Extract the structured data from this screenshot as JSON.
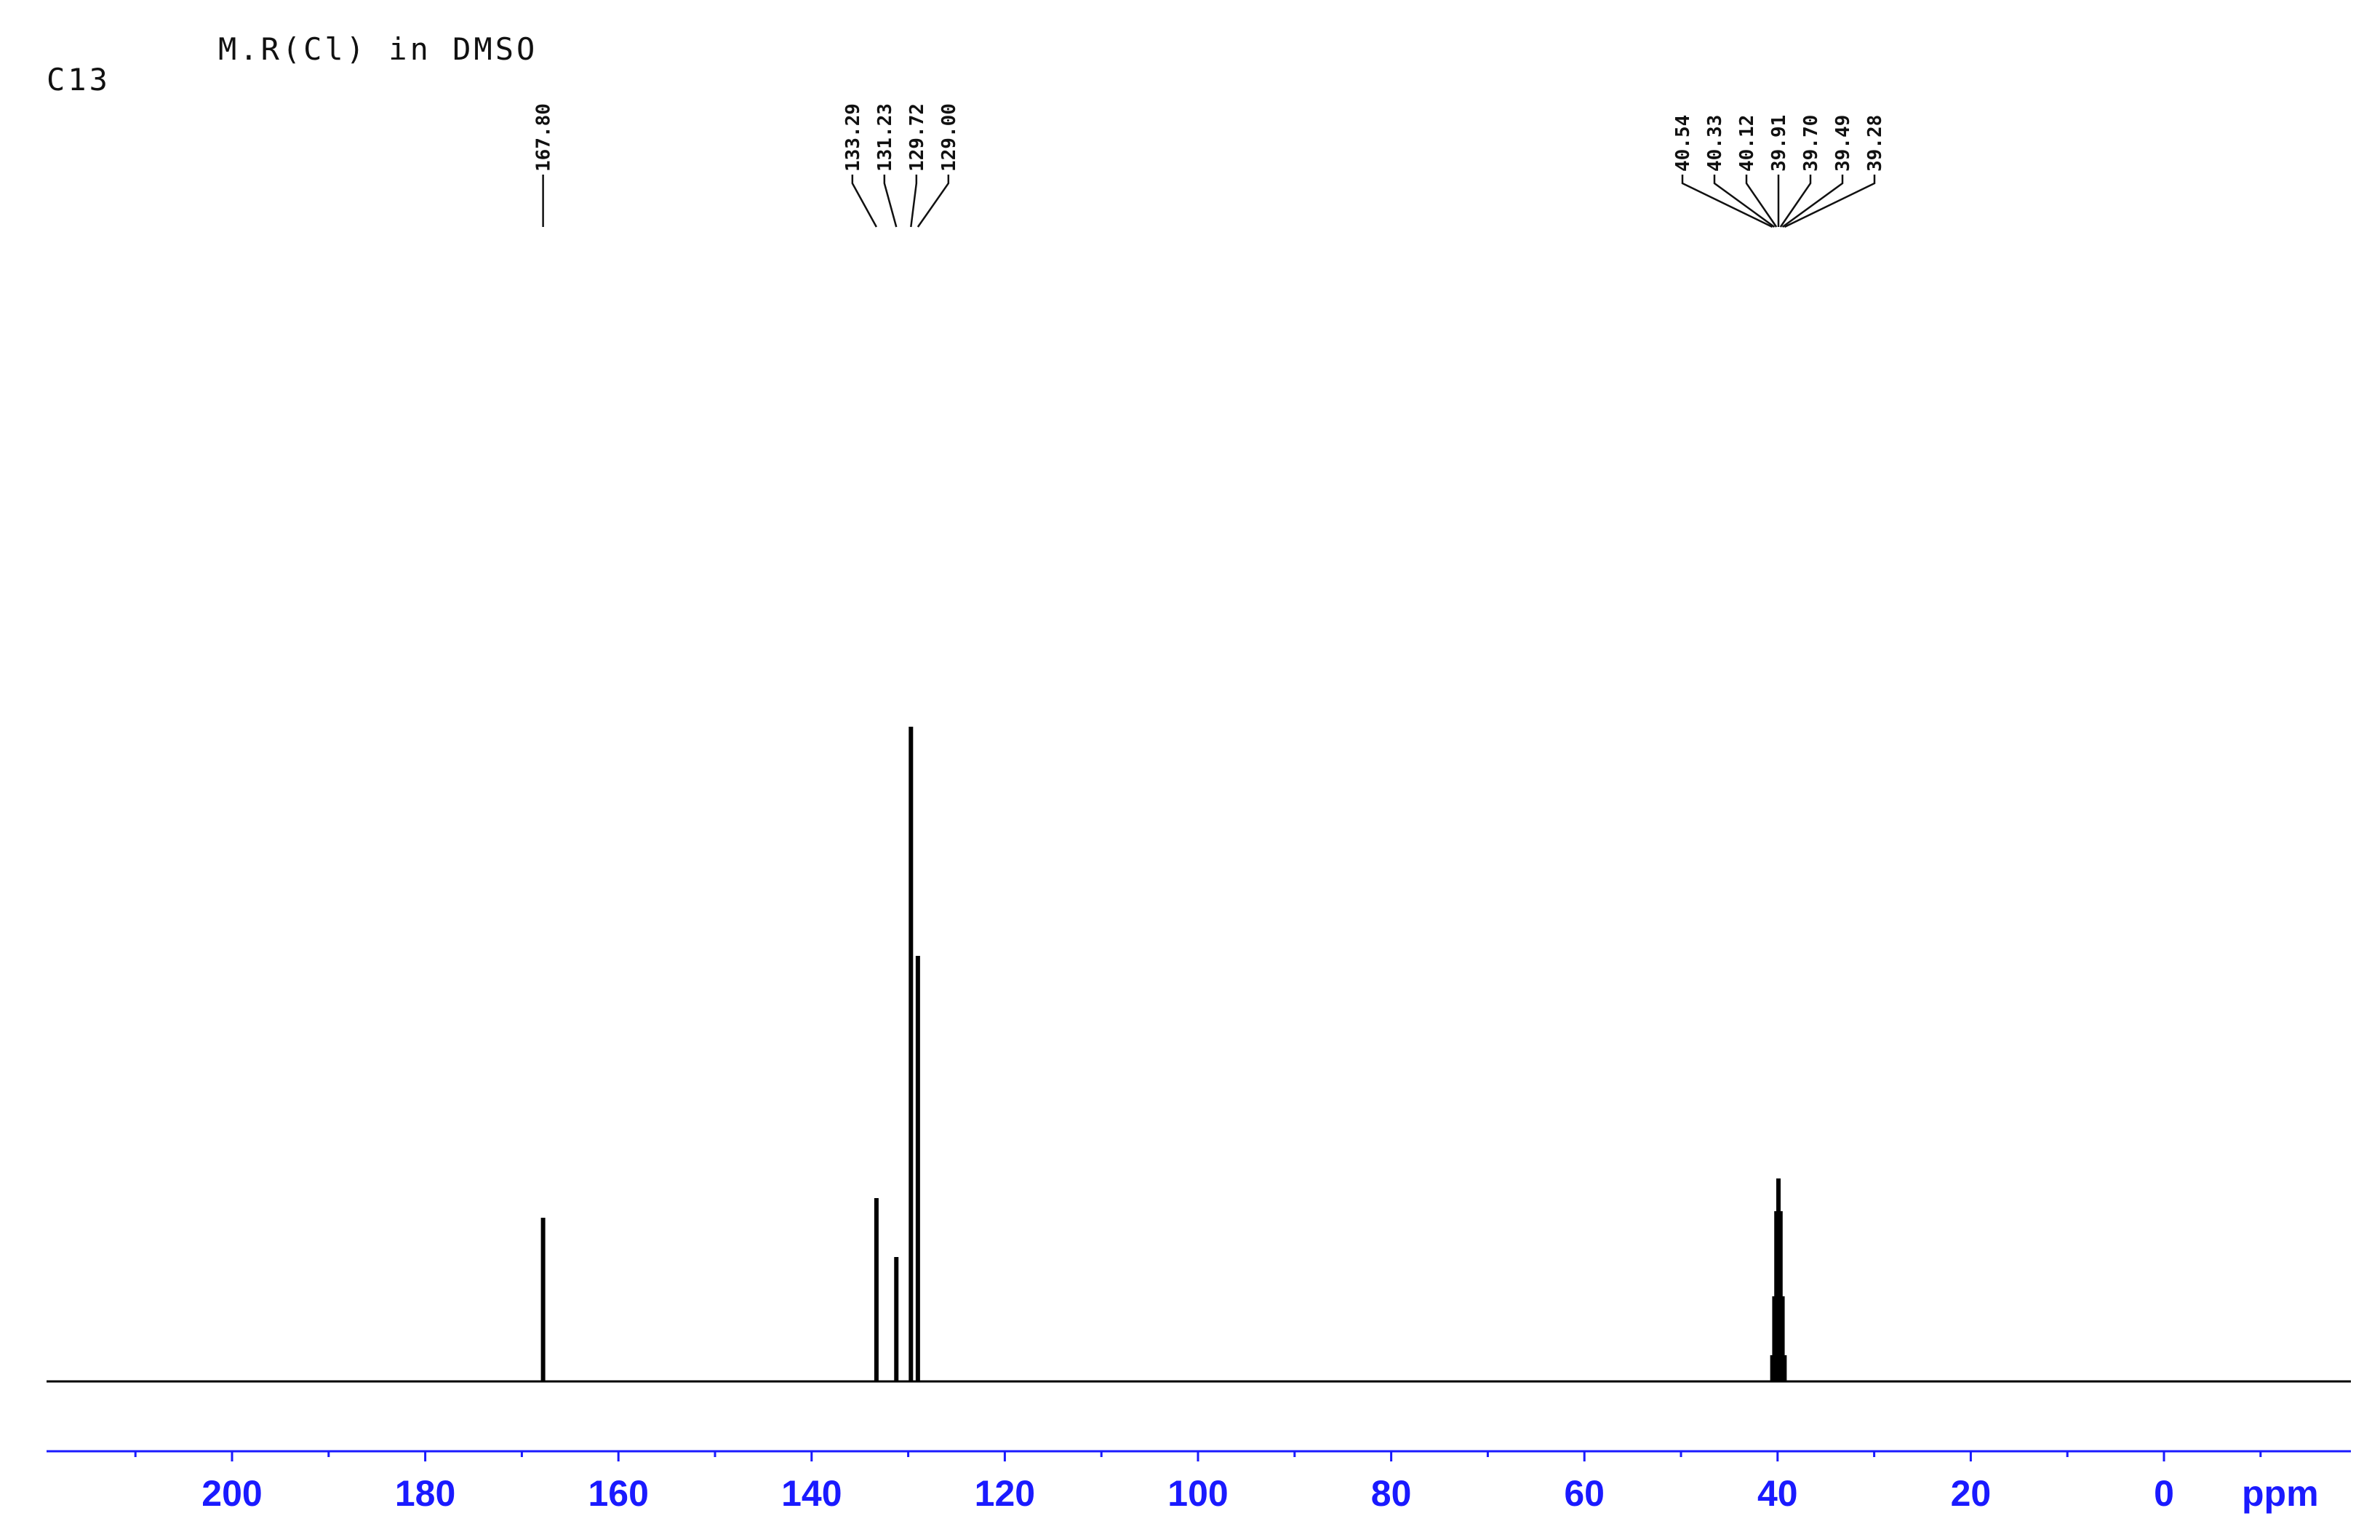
{
  "chart_data": {
    "type": "line",
    "title": "M.R(Cl) in DMSO",
    "subtitle": "C13",
    "xlabel": "ppm",
    "ylabel": "",
    "xlim": [
      220,
      -20
    ],
    "x_reversed": true,
    "x_ticks": [
      200,
      180,
      160,
      140,
      120,
      100,
      80,
      60,
      40,
      20,
      0
    ],
    "x_minor_step": 10,
    "grid": false,
    "legend": "none",
    "colors": {
      "spectrum": "#000000",
      "axis": "#1a1aff",
      "tick_label": "#1a1aff",
      "text": "#111111"
    },
    "peaks": [
      {
        "ppm": 167.8,
        "intensity": 0.25
      },
      {
        "ppm": 133.29,
        "intensity": 0.28
      },
      {
        "ppm": 131.23,
        "intensity": 0.19
      },
      {
        "ppm": 129.72,
        "intensity": 1.0
      },
      {
        "ppm": 129.0,
        "intensity": 0.65
      },
      {
        "ppm": 40.54,
        "intensity": 0.04
      },
      {
        "ppm": 40.33,
        "intensity": 0.13
      },
      {
        "ppm": 40.12,
        "intensity": 0.26
      },
      {
        "ppm": 39.91,
        "intensity": 0.31
      },
      {
        "ppm": 39.7,
        "intensity": 0.26
      },
      {
        "ppm": 39.49,
        "intensity": 0.13
      },
      {
        "ppm": 39.28,
        "intensity": 0.04
      }
    ],
    "peak_label_groups": [
      {
        "labels": [
          "167.80"
        ],
        "ppm": [
          167.8
        ]
      },
      {
        "labels": [
          "133.29",
          "131.23",
          "129.72",
          "129.00"
        ],
        "ppm": [
          133.29,
          131.23,
          129.72,
          129.0
        ]
      },
      {
        "labels": [
          "40.54",
          "40.33",
          "40.12",
          "39.91",
          "39.70",
          "39.49",
          "39.28"
        ],
        "ppm": [
          40.54,
          40.33,
          40.12,
          39.91,
          39.7,
          39.49,
          39.28
        ]
      }
    ]
  }
}
